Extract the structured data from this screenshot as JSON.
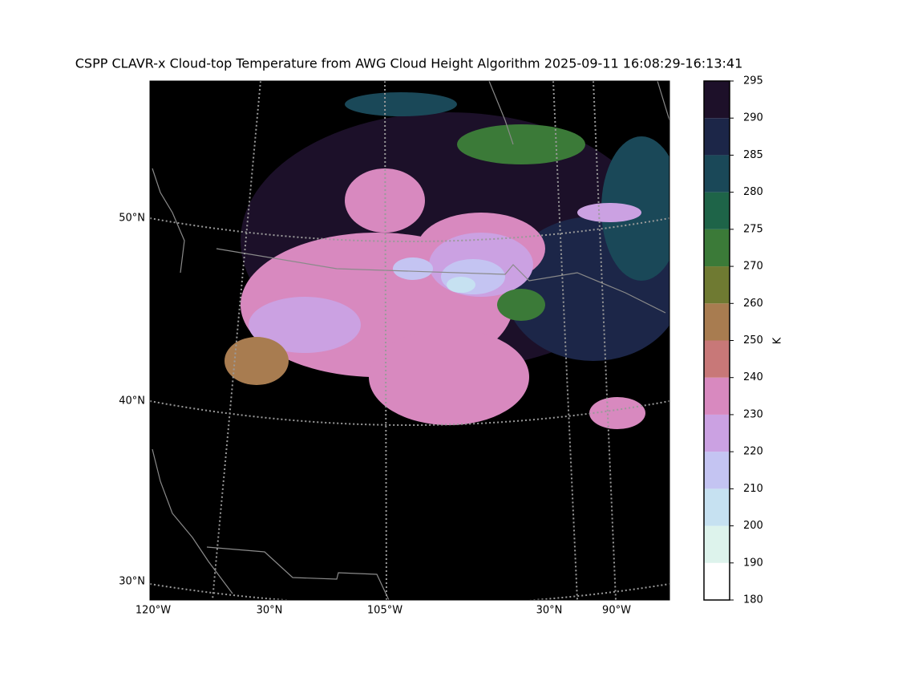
{
  "title": "CSPP CLAVR-x Cloud-top Temperature from AWG Cloud Height Algorithm 2025-09-11 16:08:29-16:13:41",
  "lat_labels": [
    "50°N",
    "40°N",
    "30°N"
  ],
  "lon_labels": [
    "120°W",
    "30°N",
    "105°W",
    "30°N",
    "90°W"
  ],
  "colorbar": {
    "label": "K",
    "ticks": [
      180,
      190,
      200,
      210,
      220,
      230,
      240,
      250,
      260,
      270,
      275,
      280,
      285,
      290,
      295
    ],
    "colors": [
      "#ffffff",
      "#ddf3ec",
      "#c6e1f1",
      "#c4c4f2",
      "#cba1e2",
      "#d889bf",
      "#c87878",
      "#a87c50",
      "#6f7a32",
      "#3b7a38",
      "#1e6448",
      "#1a4858",
      "#1c2648",
      "#1d1029"
    ]
  }
}
